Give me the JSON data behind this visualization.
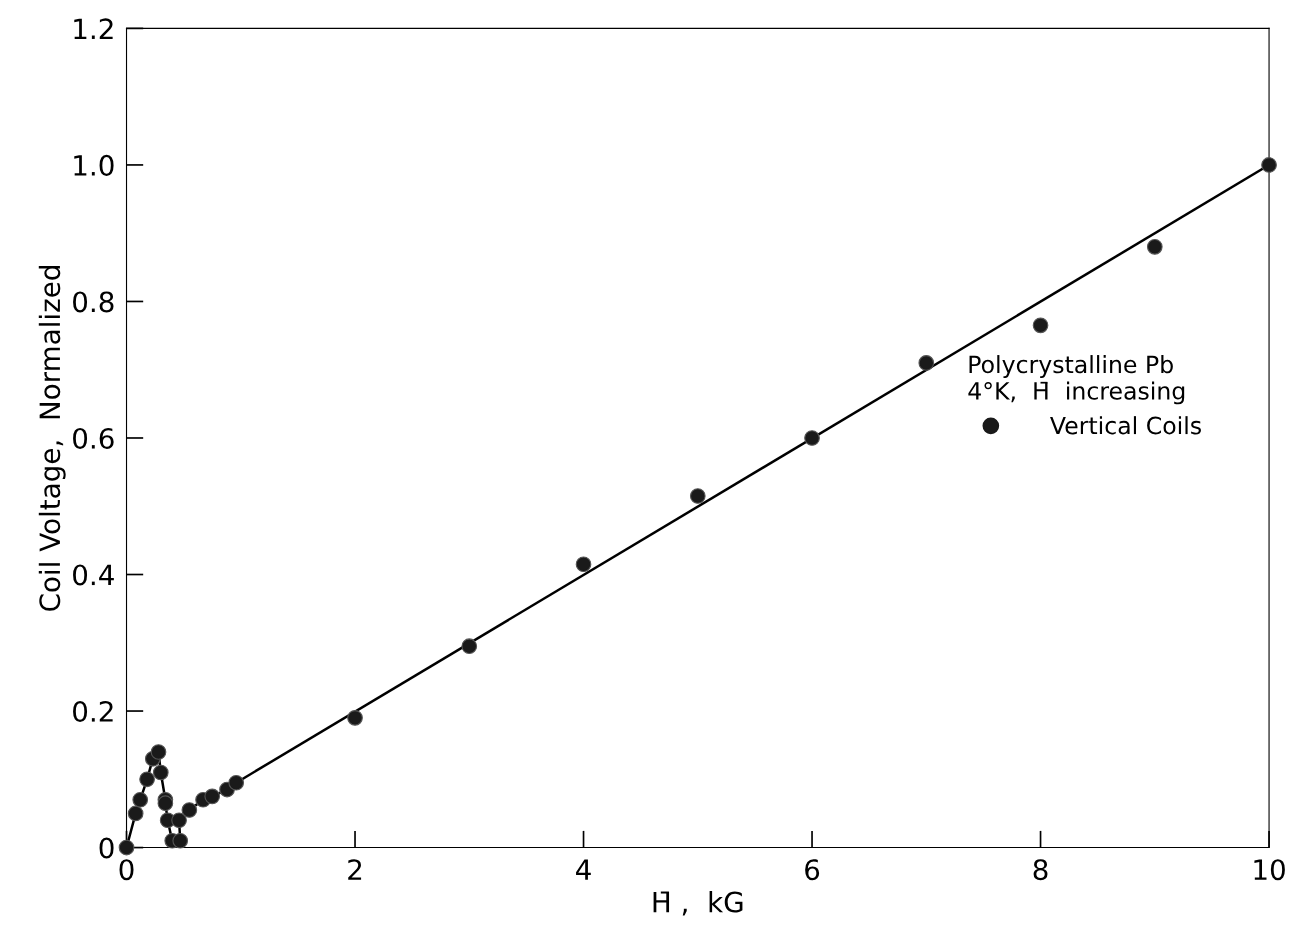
{
  "chart_data": {
    "type": "scatter",
    "xlabel": "H̄ ,  kG",
    "ylabel": "Coil Voltage,  Normalized",
    "legend_title": "Polycrystalline Pb\n4°K,  H̄  increasing",
    "legend": "right",
    "grid": false,
    "xlim": [
      0,
      10
    ],
    "ylim": [
      0,
      1.2
    ],
    "xticks": [
      0,
      2,
      4,
      6,
      8,
      10
    ],
    "yticks": [
      0,
      0.2,
      0.4,
      0.6,
      0.8,
      {
        "value": 1.0,
        "label": "1.0"
      },
      1.2
    ],
    "series": [
      {
        "type": "line",
        "color": "#000000",
        "x": [
          0,
          0.08,
          0.12,
          0.18,
          0.23,
          0.28,
          0.3,
          0.34,
          0.34,
          0.36,
          0.4,
          0.47,
          0.46,
          0.55,
          0.67,
          0.75,
          0.88,
          0.96
        ],
        "values": [
          0,
          0.05,
          0.07,
          0.1,
          0.13,
          0.14,
          0.11,
          0.07,
          0.065,
          0.04,
          0.01,
          0.01,
          0.04,
          0.055,
          0.07,
          0.075,
          0.085,
          0.095
        ]
      },
      {
        "type": "line",
        "color": "#000000",
        "x": [
          0.96,
          10
        ],
        "values": [
          0.095,
          1.0
        ]
      },
      {
        "name": "Vertical Coils",
        "marker": "circle",
        "color": "#1a1a1a",
        "x": [
          0,
          0.08,
          0.12,
          0.18,
          0.23,
          0.28,
          0.3,
          0.34,
          0.34,
          0.36,
          0.4,
          0.47,
          0.46,
          0.55,
          0.67,
          0.75,
          0.88,
          0.96,
          2,
          3,
          4,
          5,
          6,
          7,
          8,
          9,
          10
        ],
        "values": [
          0,
          0.05,
          0.07,
          0.1,
          0.13,
          0.14,
          0.11,
          0.07,
          0.065,
          0.04,
          0.01,
          0.01,
          0.04,
          0.055,
          0.07,
          0.075,
          0.085,
          0.095,
          0.19,
          0.295,
          0.415,
          0.515,
          0.6,
          0.71,
          0.765,
          0.88,
          1.0
        ]
      }
    ]
  }
}
